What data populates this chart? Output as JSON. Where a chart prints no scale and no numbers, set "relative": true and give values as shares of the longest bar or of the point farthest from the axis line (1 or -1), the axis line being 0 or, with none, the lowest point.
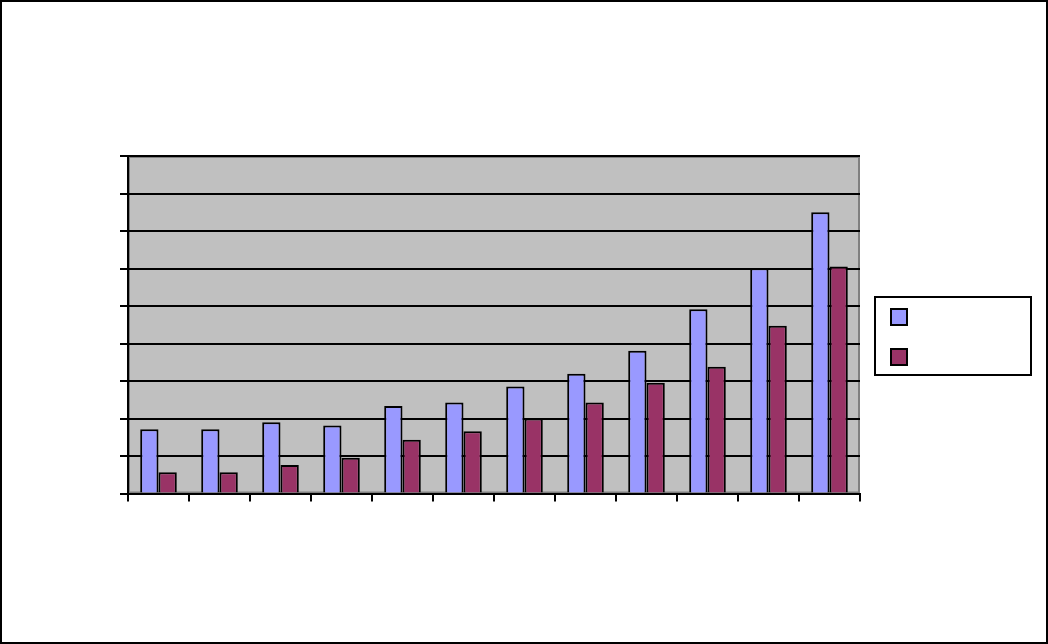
{
  "chart_data": {
    "type": "bar",
    "relative": true,
    "grid": "y",
    "categories": [
      null,
      null,
      null,
      null,
      null,
      null,
      null,
      null,
      null,
      null,
      null,
      null
    ],
    "series": [
      {
        "color": "#9999ff",
        "values": [
          0.229,
          0.229,
          0.254,
          0.242,
          0.311,
          0.324,
          0.381,
          0.426,
          0.508,
          0.655,
          0.801,
          1
        ]
      },
      {
        "color": "#993366",
        "values": [
          0.076,
          0.076,
          0.102,
          0.127,
          0.191,
          0.222,
          0.267,
          0.324,
          0.394,
          0.451,
          0.597,
          0.807
        ]
      }
    ]
  }
}
